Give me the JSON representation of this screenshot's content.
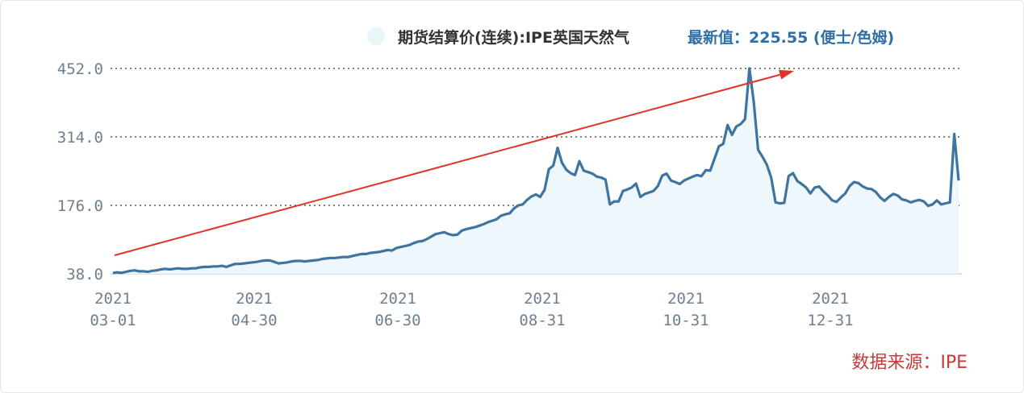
{
  "chart_data": {
    "type": "area",
    "legend": {
      "series_name": "期货结算价(连续):IPE英国天然气",
      "latest_label": "最新值：225.55 (便士/色姆)",
      "placement": "top-right"
    },
    "source": "数据来源：IPE",
    "y_ticks": [
      "452.0",
      "314.0",
      "176.0",
      "38.0"
    ],
    "ylim": [
      38,
      452
    ],
    "x_ticks": [
      {
        "year": "2021",
        "date": "03-01"
      },
      {
        "year": "2021",
        "date": "04-30"
      },
      {
        "year": "2021",
        "date": "06-30"
      },
      {
        "year": "2021",
        "date": "08-31"
      },
      {
        "year": "2021",
        "date": "10-31"
      },
      {
        "year": "2021",
        "date": "12-31"
      }
    ],
    "grid": "horizontal-dotted",
    "colors": {
      "line": "#3e74a0",
      "fill": "#eef7fb",
      "arrow": "#e0332b",
      "legend_dot": "#e8f5f9"
    },
    "series": [
      {
        "values": [
          40,
          41,
          40,
          42,
          44,
          45,
          43,
          43,
          42,
          44,
          45,
          47,
          48,
          47,
          48,
          49,
          48,
          48,
          49,
          49,
          51,
          52,
          52,
          53,
          53,
          54,
          52,
          55,
          58,
          58,
          59,
          60,
          61,
          62,
          64,
          65,
          65,
          62,
          59,
          60,
          61,
          63,
          64,
          64,
          63,
          64,
          65,
          66,
          68,
          69,
          70,
          70,
          71,
          72,
          72,
          74,
          76,
          78,
          78,
          80,
          81,
          82,
          84,
          86,
          85,
          90,
          92,
          94,
          96,
          100,
          103,
          104,
          108,
          113,
          118,
          120,
          122,
          118,
          116,
          117,
          125,
          128,
          130,
          132,
          135,
          138,
          142,
          145,
          148,
          155,
          158,
          160,
          170,
          176,
          178,
          187,
          194,
          198,
          193,
          207,
          249,
          256,
          292,
          262,
          248,
          241,
          237,
          265,
          246,
          243,
          240,
          234,
          232,
          228,
          178,
          184,
          184,
          205,
          208,
          212,
          220,
          193,
          199,
          202,
          205,
          215,
          236,
          240,
          226,
          223,
          219,
          226,
          230,
          234,
          237,
          235,
          247,
          246,
          270,
          295,
          300,
          338,
          318,
          335,
          340,
          350,
          452,
          385,
          288,
          274,
          258,
          232,
          182,
          180,
          181,
          235,
          241,
          225,
          219,
          212,
          200,
          212,
          214,
          204,
          196,
          186,
          183,
          192,
          200,
          215,
          223,
          221,
          214,
          210,
          209,
          203,
          192,
          185,
          193,
          199,
          196,
          188,
          186,
          182,
          185,
          187,
          184,
          175,
          178,
          186,
          178,
          180,
          182,
          320,
          226
        ]
      }
    ]
  }
}
